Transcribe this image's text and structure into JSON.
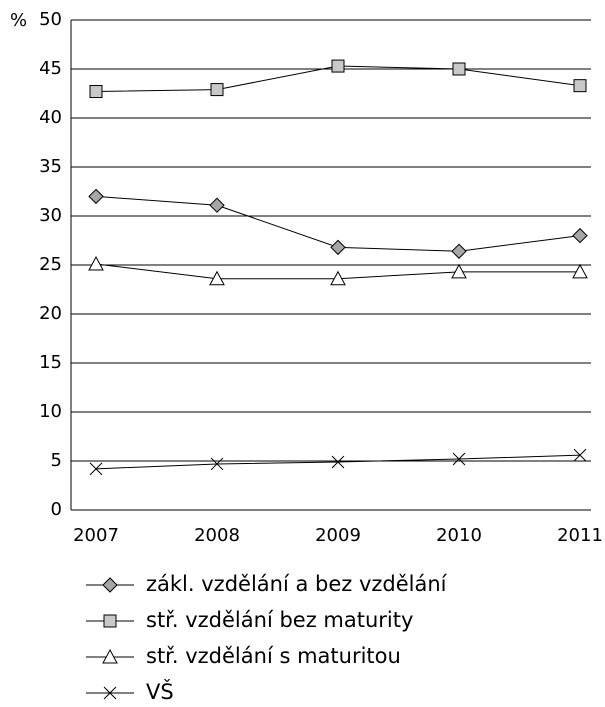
{
  "chart_data": {
    "type": "line",
    "y_unit": "%",
    "categories": [
      "2007",
      "2008",
      "2009",
      "2010",
      "2011"
    ],
    "series": [
      {
        "name": "zákl. vzdělání a bez vzdělání",
        "color": "#a6a6a6",
        "marker": "diamond",
        "values": [
          32.0,
          31.1,
          26.8,
          26.4,
          28.0
        ]
      },
      {
        "name": "stř. vzdělání bez maturity",
        "color": "#c8c8c8",
        "marker": "square",
        "values": [
          42.7,
          42.9,
          45.3,
          45.0,
          43.3
        ]
      },
      {
        "name": "stř. vzdělání s maturitou",
        "color": "#ffffff",
        "marker": "triangle",
        "values": [
          25.1,
          23.6,
          23.6,
          24.3,
          24.3
        ]
      },
      {
        "name": "VŠ",
        "color": "#000000",
        "marker": "x",
        "values": [
          4.2,
          4.7,
          4.9,
          5.2,
          5.6
        ]
      }
    ],
    "ylim": [
      0,
      50
    ],
    "yticks": [
      0,
      5,
      10,
      15,
      20,
      25,
      30,
      35,
      40,
      45,
      50
    ],
    "grid": true
  }
}
